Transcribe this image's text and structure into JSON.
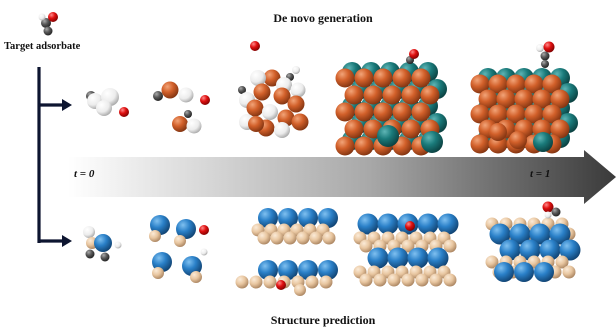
{
  "labels": {
    "title_top": "De novo generation",
    "title_bottom": "Structure prediction",
    "target": "Target adsorbate"
  },
  "timeline": {
    "start": "t = 0",
    "end": "t = 1"
  },
  "colors": {
    "oxygen": "#e01010",
    "carbon": "#555555",
    "hydrogen": "#f2f2f2",
    "copper_orange": "#d2602a",
    "teal_metal": "#1a7a7a",
    "blue_metal": "#2a80c8",
    "tan_metal": "#e8c6a0",
    "arrow_gradient_start": "#ffffff",
    "arrow_gradient_end": "#3a3a3a"
  }
}
